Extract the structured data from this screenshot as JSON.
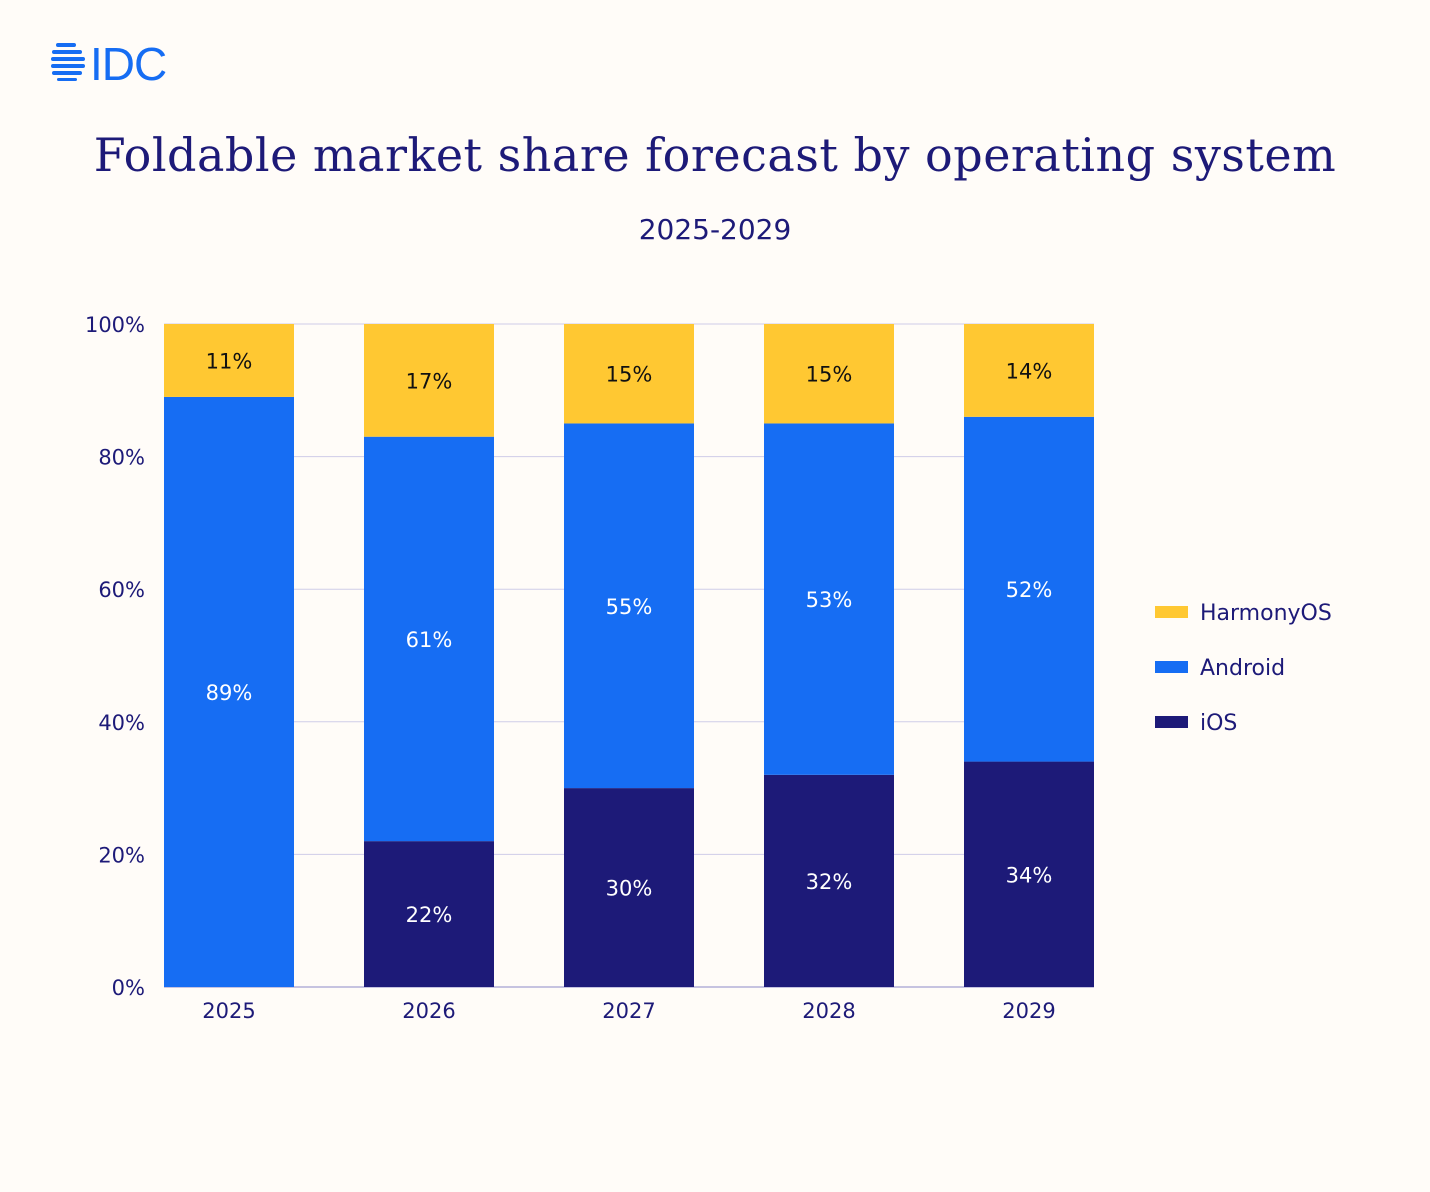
{
  "brand": {
    "logo_text": "IDC",
    "color": "#166DF3"
  },
  "chart_data": {
    "type": "bar",
    "stacked": true,
    "title": "Foldable market share forecast by operating system",
    "subtitle": "2025-2029",
    "xlabel": "",
    "ylabel": "",
    "ylim": [
      0,
      100
    ],
    "yticks": [
      "0%",
      "20%",
      "40%",
      "60%",
      "80%",
      "100%"
    ],
    "grid": true,
    "legend_position": "right",
    "categories": [
      "2025",
      "2026",
      "2027",
      "2028",
      "2029"
    ],
    "series": [
      {
        "name": "iOS",
        "color": "#1D1A78",
        "label_color": "#FFFFFF",
        "values": [
          0,
          22,
          30,
          32,
          34
        ],
        "labels": [
          "",
          "22%",
          "30%",
          "32%",
          "34%"
        ]
      },
      {
        "name": "Android",
        "color": "#166DF3",
        "label_color": "#FFFFFF",
        "values": [
          89,
          61,
          55,
          53,
          52
        ],
        "labels": [
          "89%",
          "61%",
          "55%",
          "53%",
          "52%"
        ]
      },
      {
        "name": "HarmonyOS",
        "color": "#FFC832",
        "label_color": "#111111",
        "values": [
          11,
          17,
          15,
          15,
          14
        ],
        "labels": [
          "11%",
          "17%",
          "15%",
          "15%",
          "14%"
        ]
      }
    ],
    "legend_order": [
      "HarmonyOS",
      "Android",
      "iOS"
    ]
  }
}
